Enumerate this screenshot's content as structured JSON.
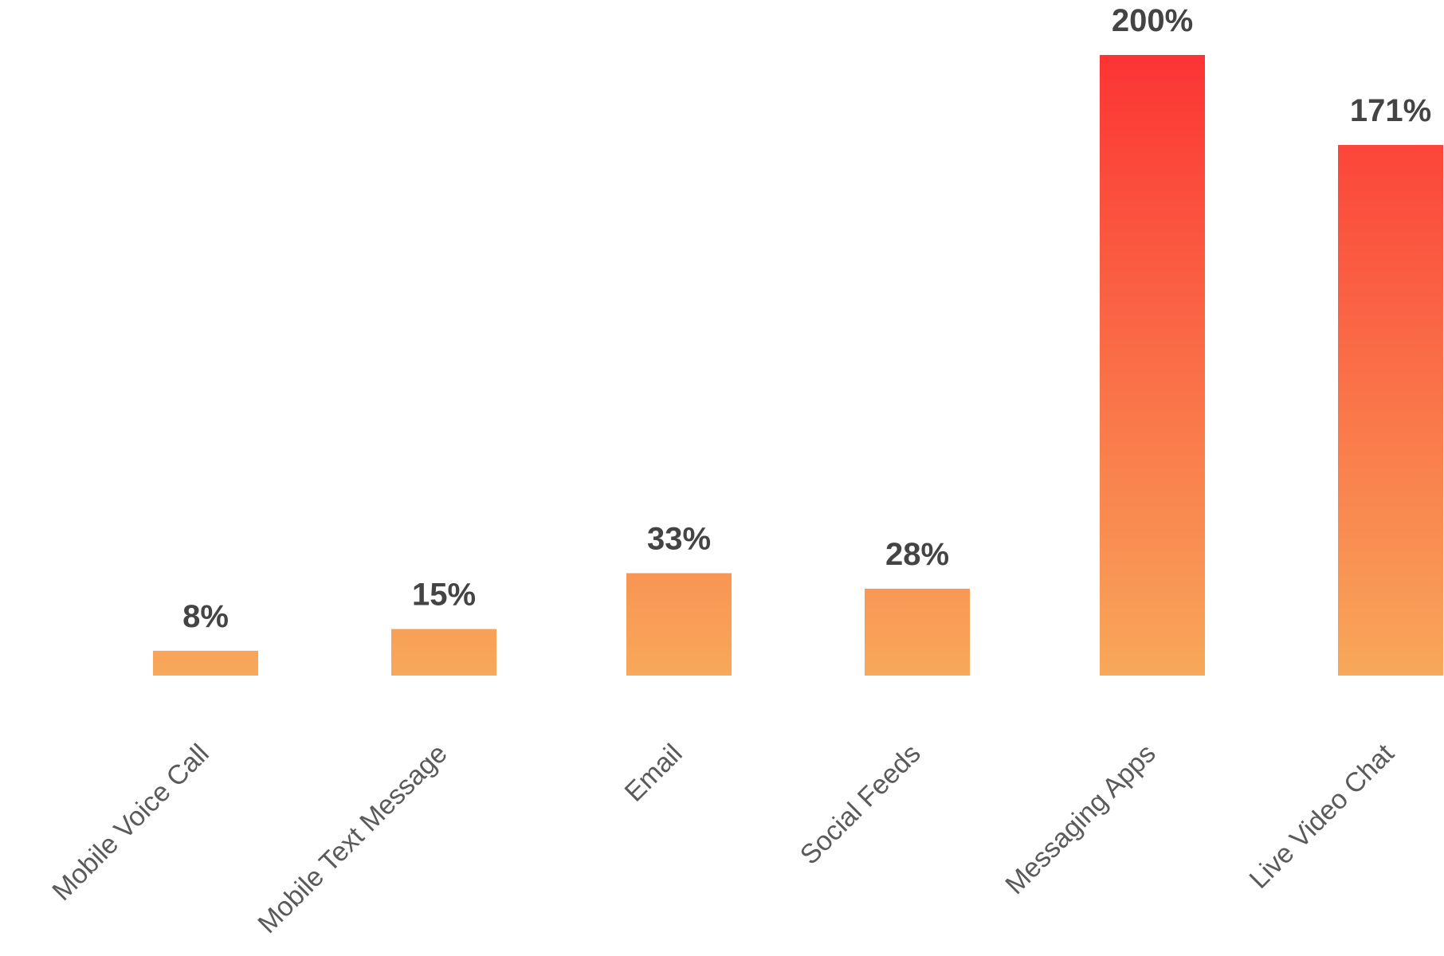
{
  "chart_data": {
    "type": "bar",
    "categories": [
      "Mobile Voice Call",
      "Mobile Text Message",
      "Email",
      "Social Feeds",
      "Messaging Apps",
      "Live Video Chat"
    ],
    "values": [
      8,
      15,
      33,
      28,
      200,
      171
    ],
    "value_labels": [
      "8%",
      "15%",
      "33%",
      "28%",
      "200%",
      "171%"
    ],
    "gradient": [
      "#f8a85a",
      "#fc3434"
    ]
  }
}
